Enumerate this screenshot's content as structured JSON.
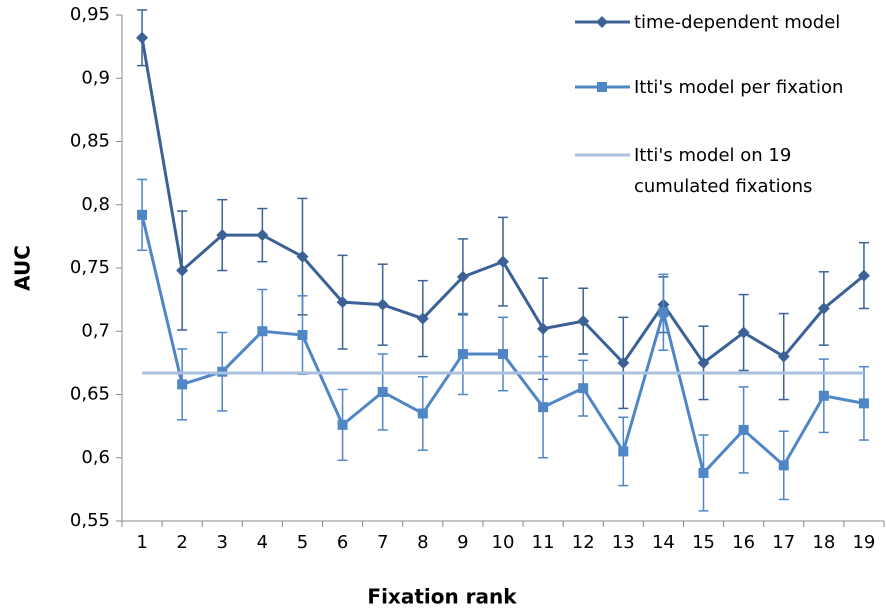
{
  "chart_data": {
    "type": "line",
    "x_label": "Fixation rank",
    "y_label": "AUC",
    "categories": [
      "1",
      "2",
      "3",
      "4",
      "5",
      "6",
      "7",
      "8",
      "9",
      "10",
      "11",
      "12",
      "13",
      "14",
      "15",
      "16",
      "17",
      "18",
      "19"
    ],
    "ylim": [
      0.55,
      0.95
    ],
    "yticks": [
      {
        "value": 0.55,
        "label": "0,55"
      },
      {
        "value": 0.6,
        "label": "0,6"
      },
      {
        "value": 0.65,
        "label": "0,65"
      },
      {
        "value": 0.7,
        "label": "0,7"
      },
      {
        "value": 0.75,
        "label": "0,75"
      },
      {
        "value": 0.8,
        "label": "0,8"
      },
      {
        "value": 0.85,
        "label": "0,85"
      },
      {
        "value": 0.9,
        "label": "0,9"
      },
      {
        "value": 0.95,
        "label": "0,95"
      }
    ],
    "grid": false,
    "legend": "right",
    "series": [
      {
        "name": "time-dependent model",
        "color": "#3b6196",
        "marker": "diamond",
        "values": [
          0.932,
          0.748,
          0.776,
          0.776,
          0.759,
          0.723,
          0.721,
          0.71,
          0.743,
          0.755,
          0.702,
          0.708,
          0.675,
          0.721,
          0.675,
          0.699,
          0.68,
          0.718,
          0.744
        ],
        "errors": [
          0.022,
          0.047,
          0.028,
          0.021,
          0.046,
          0.037,
          0.032,
          0.03,
          0.03,
          0.035,
          0.04,
          0.026,
          0.036,
          0.022,
          0.029,
          0.03,
          0.034,
          0.029,
          0.026
        ]
      },
      {
        "name": "Itti's model per fixation",
        "color": "#4f86c6",
        "marker": "square",
        "values": [
          0.792,
          0.658,
          0.668,
          0.7,
          0.697,
          0.626,
          0.652,
          0.635,
          0.682,
          0.682,
          0.64,
          0.655,
          0.605,
          0.715,
          0.588,
          0.622,
          0.594,
          0.649,
          0.643
        ],
        "errors": [
          0.028,
          0.028,
          0.031,
          0.033,
          0.031,
          0.028,
          0.03,
          0.029,
          0.032,
          0.029,
          0.04,
          0.022,
          0.027,
          0.03,
          0.03,
          0.034,
          0.027,
          0.029,
          0.029
        ]
      },
      {
        "name": "Itti's model on 19 cumulated fixations",
        "color": "#a9c0de",
        "marker": "none",
        "values": [
          0.667,
          0.667,
          0.667,
          0.667,
          0.667,
          0.667,
          0.667,
          0.667,
          0.667,
          0.667,
          0.667,
          0.667,
          0.667,
          0.667,
          0.667,
          0.667,
          0.667,
          0.667,
          0.667
        ]
      }
    ]
  }
}
